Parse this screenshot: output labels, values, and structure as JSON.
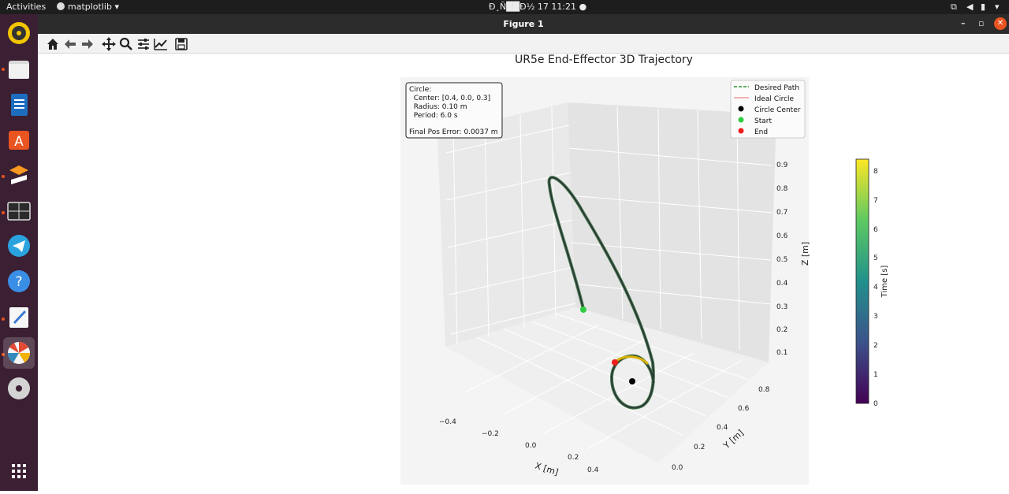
{
  "topbar": {
    "activities": "Activities",
    "app_menu": "matplotlib",
    "clock": "Đ¸Ñ██Đ½ 17  11:21"
  },
  "window": {
    "title": "Figure 1",
    "controls": {
      "minimize": "–",
      "maximize": "▫",
      "close": "✕"
    }
  },
  "dock": {
    "items": [
      "rhythmbox",
      "files",
      "writer",
      "app-center",
      "sublime",
      "terminal",
      "telegram",
      "help",
      "text-editor",
      "matplotlib",
      "disc"
    ],
    "show_apps": "show-applications"
  },
  "toolbar": {
    "buttons": [
      "home",
      "back",
      "forward",
      "pan",
      "zoom",
      "configure-subplots",
      "edit-axis",
      "save"
    ]
  },
  "figure": {
    "title": "UR5e End-Effector 3D Trajectory",
    "info_box": {
      "line1": "Circle:",
      "line2": "  Center: [0.4, 0.0, 0.3]",
      "line3": "  Radius: 0.10 m",
      "line4": "  Period: 6.0 s",
      "line5": "Final Pos Error: 0.0037 m"
    },
    "legend": {
      "desired_path": "Desired Path",
      "ideal_circle": "Ideal Circle",
      "circle_center": "Circle Center",
      "start": "Start",
      "end": "End"
    },
    "axes": {
      "xlabel": "X [m]",
      "ylabel": "Y [m]",
      "zlabel": "Z [m]",
      "x_ticks": [
        "−0.4",
        "−0.2",
        "0.0",
        "0.2",
        "0.4"
      ],
      "y_ticks": [
        "0.0",
        "0.2",
        "0.4",
        "0.6",
        "0.8"
      ],
      "z_ticks": [
        "0.1",
        "0.2",
        "0.3",
        "0.4",
        "0.5",
        "0.6",
        "0.7",
        "0.8",
        "0.9"
      ]
    },
    "colorbar": {
      "label": "Time [s]",
      "ticks": [
        "0",
        "1",
        "2",
        "3",
        "4",
        "5",
        "6",
        "7",
        "8"
      ],
      "min": 0,
      "max": 8.4
    },
    "colors": {
      "start": "#2ecc40",
      "end": "#ee1c1c",
      "center": "#000000",
      "path": "#2a3a3a",
      "desired": "#008000",
      "ideal": "#e86a6a",
      "pane": "#f2f2f2"
    }
  }
}
